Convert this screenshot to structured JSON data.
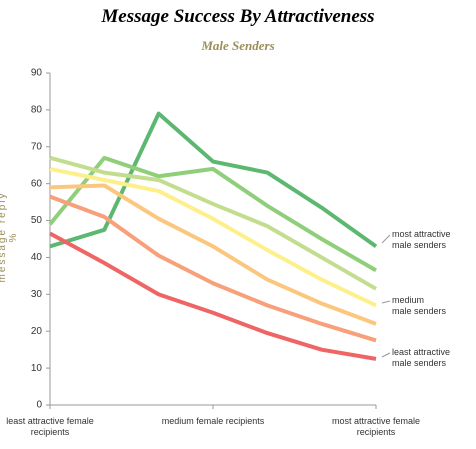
{
  "chart_data": {
    "type": "line",
    "title": "Message Success By Attractiveness",
    "subtitle": "Male Senders",
    "y_label": "message reply %",
    "categories": [
      "least attractive female\nrecipients",
      null,
      null,
      "medium female recipients",
      null,
      null,
      "most attractive female\nrecipients"
    ],
    "ylim": [
      0,
      90
    ],
    "yticks": [
      0,
      10,
      20,
      30,
      40,
      50,
      60,
      70,
      80,
      90
    ],
    "grid": false,
    "series": [
      {
        "color": "#5cb870",
        "values": [
          43,
          47.5,
          79,
          66,
          63,
          53.5,
          43
        ]
      },
      {
        "color": "#8fcf7a",
        "values": [
          49,
          67,
          62,
          64,
          54,
          45,
          36.5
        ]
      },
      {
        "color": "#c3dd8e",
        "values": [
          67,
          63,
          61,
          54.5,
          48.5,
          40,
          31.5
        ]
      },
      {
        "color": "#fdf08a",
        "values": [
          64,
          61,
          58,
          50.5,
          42,
          34,
          27
        ]
      },
      {
        "color": "#fbc77f",
        "values": [
          59,
          59.5,
          50.5,
          43,
          34,
          27.5,
          22
        ]
      },
      {
        "color": "#f7a07a",
        "values": [
          56.5,
          51,
          40.5,
          33,
          27,
          22,
          17.5
        ]
      },
      {
        "color": "#ef6566",
        "values": [
          46.5,
          38.5,
          30,
          25,
          19.5,
          15,
          12.5
        ]
      }
    ],
    "annotations": [
      "most attractive\nmale senders",
      "medium\nmale senders",
      "least attractive\nmale senders"
    ]
  }
}
